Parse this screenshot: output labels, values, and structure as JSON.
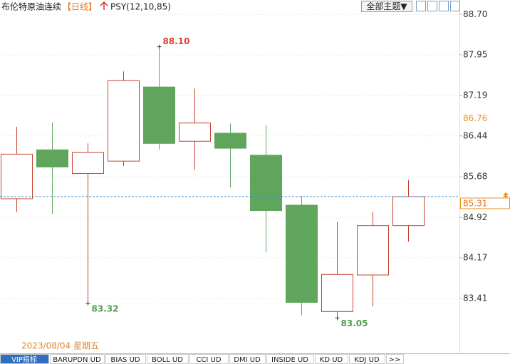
{
  "toolbar": {
    "title": "布伦特原油连续",
    "period": "【日线】",
    "indicator": "PSY(12,10,85)",
    "theme_button": "全部主题▼"
  },
  "chart_data": {
    "type": "candlestick",
    "open": [
      85.27,
      86.18,
      85.74,
      85.97,
      87.35,
      86.34,
      86.49,
      86.08,
      85.15,
      83.17,
      83.85,
      84.77
    ],
    "high": [
      86.61,
      86.69,
      86.3,
      87.64,
      88.1,
      87.32,
      86.67,
      86.64,
      85.32,
      84.84,
      85.03,
      85.62
    ],
    "low": [
      85.02,
      84.99,
      83.32,
      85.88,
      86.18,
      85.81,
      85.48,
      84.27,
      83.1,
      83.05,
      83.27,
      84.47
    ],
    "close": [
      86.1,
      85.86,
      86.13,
      87.47,
      86.3,
      86.68,
      86.21,
      85.05,
      83.34,
      83.86,
      84.77,
      85.31
    ],
    "high_value_labels": [
      null,
      null,
      null,
      null,
      "88.10",
      null,
      null,
      null,
      null,
      null,
      null,
      null
    ],
    "low_value_labels": [
      null,
      null,
      "83.32",
      null,
      null,
      null,
      null,
      null,
      null,
      "83.05",
      null,
      null
    ],
    "up_color": "#c8402f",
    "down_color": "#5fa65c",
    "ylim": [
      82.67,
      88.97
    ],
    "yticks": [
      {
        "value": 88.7,
        "label": "88.70"
      },
      87.95,
      87.19,
      86.44,
      85.68,
      84.92,
      84.17,
      83.41
    ],
    "price_markers": [
      {
        "value": 86.76,
        "label": "86.76"
      },
      {
        "value": 85.31,
        "label": "85.31"
      }
    ],
    "crosshair_date": "2023/08/04 星期五",
    "grid": true
  },
  "tabs": [
    "VIP指标",
    "BARUPDN UD",
    "BIAS UD",
    "BOLL UD",
    "CCI UD",
    "DMI UD",
    "INSIDE UD",
    "KD UD",
    "KDJ UD",
    ">>"
  ]
}
